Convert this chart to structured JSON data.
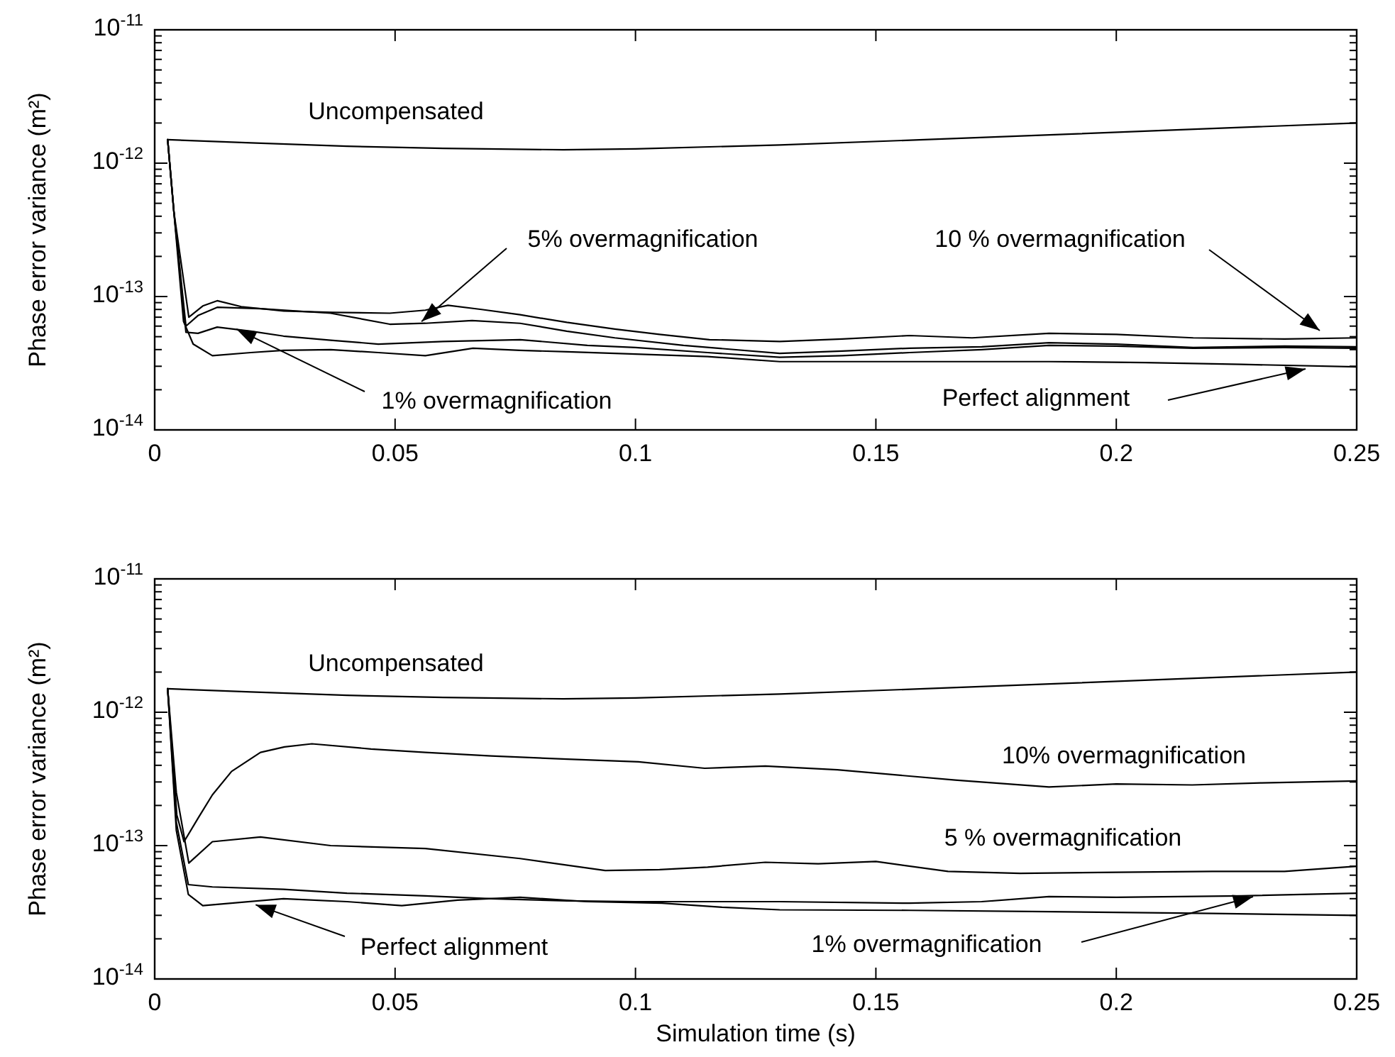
{
  "chart_data": [
    {
      "type": "line",
      "ylabel": "Phase error variance (m²)",
      "log": "y",
      "xlim": [
        0,
        0.25
      ],
      "ylim": [
        1e-14,
        1e-11
      ],
      "annotations": [
        "10 % overmagnification",
        {
          "text": "5% overmagnification",
          "x": 0.0555,
          "y": 6.5e-14
        },
        {
          "text": "1% overmagnification",
          "x": 0.017,
          "y": 5.7e-14
        },
        "Perfect alignment"
      ],
      "xticks": [
        0,
        0.05,
        0.1,
        0.15,
        0.2,
        0.25
      ],
      "yticks": [
        {
          "value": 1e-14,
          "label": "10$^{-14}$"
        },
        {
          "value": 1e-13,
          "label": "10$^{-13}$"
        },
        {
          "value": 1e-12,
          "label": "10$^{-12}$"
        },
        {
          "value": 1e-11,
          "label": "10$^{-11}$"
        },
        {
          "value": 2e-14,
          "label": null
        },
        {
          "value": 3e-14,
          "label": null
        },
        {
          "value": 4e-14,
          "label": null
        },
        {
          "value": 5e-14,
          "label": null
        },
        {
          "value": 6e-14,
          "label": null
        },
        {
          "value": 7e-14,
          "label": null
        },
        {
          "value": 8e-14,
          "label": null
        },
        {
          "value": 9e-14,
          "label": null
        },
        {
          "value": 2e-13,
          "label": null
        },
        {
          "value": 3e-13,
          "label": null
        },
        {
          "value": 4e-13,
          "label": null
        },
        {
          "value": 5e-13,
          "label": null
        },
        {
          "value": 6e-13,
          "label": null
        },
        {
          "value": 7e-13,
          "label": null
        },
        {
          "value": 8e-13,
          "label": null
        },
        {
          "value": 9e-13,
          "label": null
        },
        {
          "value": 2e-12,
          "label": null
        },
        {
          "value": 3e-12,
          "label": null
        },
        {
          "value": 4e-12,
          "label": null
        },
        {
          "value": 5e-12,
          "label": null
        },
        {
          "value": 6e-12,
          "label": null
        },
        {
          "value": 7e-12,
          "label": null
        },
        {
          "value": 8e-12,
          "label": null
        },
        {
          "value": 9e-12,
          "label": null
        }
      ],
      "series": [
        {
          "name": "Uncompensated",
          "color": "#000000",
          "x": [
            0.0027,
            0.02,
            0.04,
            0.06,
            0.085,
            0.1,
            0.13,
            0.16,
            0.19,
            0.22,
            0.25
          ],
          "values": [
            1.5e-12,
            1.42e-12,
            1.34e-12,
            1.29e-12,
            1.26e-12,
            1.28e-12,
            1.37e-12,
            1.5e-12,
            1.65e-12,
            1.82e-12,
            2e-12
          ]
        },
        {
          "color": "#000000",
          "x": [
            0.0027,
            0.004,
            0.0071,
            0.01,
            0.013,
            0.018,
            0.0268,
            0.037,
            0.0489,
            0.0563,
            0.061,
            0.068,
            0.076,
            0.0857,
            0.0957,
            0.105,
            0.1154,
            0.13,
            0.143,
            0.157,
            0.17,
            0.186,
            0.2,
            0.216,
            0.235,
            0.25
          ],
          "values": [
            1.5e-12,
            4.3e-13,
            7e-14,
            8.5e-14,
            9.3e-14,
            8.4e-14,
            7.8e-14,
            7.6e-14,
            7.5e-14,
            7.9e-14,
            8.6e-14,
            8e-14,
            7.3e-14,
            6.4e-14,
            5.7e-14,
            5.2e-14,
            4.75e-14,
            4.6e-14,
            4.8e-14,
            5.1e-14,
            4.9e-14,
            5.3e-14,
            5.2e-14,
            4.9e-14,
            4.8e-14,
            4.9e-14
          ]
        },
        {
          "color": "#000000",
          "x": [
            0.0027,
            0.004,
            0.0065,
            0.009,
            0.013,
            0.022,
            0.0366,
            0.0489,
            0.0563,
            0.066,
            0.076,
            0.0857,
            0.0957,
            0.11,
            0.13,
            0.143,
            0.157,
            0.172,
            0.186,
            0.2,
            0.216,
            0.235,
            0.25
          ],
          "values": [
            1.5e-12,
            4.3e-13,
            6e-14,
            7.2e-14,
            8.3e-14,
            8.1e-14,
            7.5e-14,
            6.2e-14,
            6.3e-14,
            6.6e-14,
            6.3e-14,
            5.5e-14,
            4.9e-14,
            4.3e-14,
            3.75e-14,
            3.9e-14,
            4.1e-14,
            4.2e-14,
            4.5e-14,
            4.4e-14,
            4.15e-14,
            4.25e-14,
            4.2e-14
          ]
        },
        {
          "color": "#000000",
          "x": [
            0.0027,
            0.004,
            0.0065,
            0.009,
            0.013,
            0.02,
            0.0268,
            0.0366,
            0.0465,
            0.06,
            0.076,
            0.09,
            0.1,
            0.115,
            0.13,
            0.143,
            0.157,
            0.172,
            0.186,
            0.2,
            0.216,
            0.235,
            0.25
          ],
          "values": [
            1.5e-12,
            4.3e-13,
            5.4e-14,
            5.3e-14,
            5.9e-14,
            5.5e-14,
            5.05e-14,
            4.7e-14,
            4.4e-14,
            4.6e-14,
            4.75e-14,
            4.3e-14,
            4.15e-14,
            3.8e-14,
            3.5e-14,
            3.6e-14,
            3.8e-14,
            4e-14,
            4.3e-14,
            4.25e-14,
            4.1e-14,
            4.15e-14,
            4.1e-14
          ]
        },
        {
          "color": "#000000",
          "x": [
            0.0027,
            0.004,
            0.006,
            0.008,
            0.012,
            0.02,
            0.0268,
            0.0366,
            0.0465,
            0.0563,
            0.0662,
            0.076,
            0.0858,
            0.1,
            0.115,
            0.13,
            0.157,
            0.186,
            0.206,
            0.226,
            0.25
          ],
          "values": [
            1.5e-12,
            4.3e-13,
            6.5e-14,
            4.4e-14,
            3.6e-14,
            3.8e-14,
            3.95e-14,
            4e-14,
            3.8e-14,
            3.6e-14,
            4.1e-14,
            3.95e-14,
            3.85e-14,
            3.7e-14,
            3.55e-14,
            3.25e-14,
            3.25e-14,
            3.25e-14,
            3.2e-14,
            3.1e-14,
            2.97e-14
          ]
        }
      ]
    },
    {
      "type": "line",
      "xlabel": "Simulation time (s)",
      "ylabel": "Phase error variance (m²)",
      "log": "y",
      "xlim": [
        0,
        0.25
      ],
      "ylim": [
        1e-14,
        1e-11
      ],
      "annotations": [
        "1% overmagnification",
        {
          "text": "Perfect alignment",
          "x": 0.021,
          "y": 3.6e-14
        }
      ],
      "xticks": [
        0,
        0.05,
        0.1,
        0.15,
        0.2,
        0.25
      ],
      "yticks": [
        {
          "value": 1e-14,
          "label": "10$^{-14}$"
        },
        {
          "value": 1e-13,
          "label": "10$^{-13}$"
        },
        {
          "value": 1e-12,
          "label": "10$^{-12}$"
        },
        {
          "value": 1e-11,
          "label": "10$^{-11}$"
        },
        {
          "value": 2e-14,
          "label": null
        },
        {
          "value": 3e-14,
          "label": null
        },
        {
          "value": 4e-14,
          "label": null
        },
        {
          "value": 5e-14,
          "label": null
        },
        {
          "value": 6e-14,
          "label": null
        },
        {
          "value": 7e-14,
          "label": null
        },
        {
          "value": 8e-14,
          "label": null
        },
        {
          "value": 9e-14,
          "label": null
        },
        {
          "value": 2e-13,
          "label": null
        },
        {
          "value": 3e-13,
          "label": null
        },
        {
          "value": 4e-13,
          "label": null
        },
        {
          "value": 5e-13,
          "label": null
        },
        {
          "value": 6e-13,
          "label": null
        },
        {
          "value": 7e-13,
          "label": null
        },
        {
          "value": 8e-13,
          "label": null
        },
        {
          "value": 9e-13,
          "label": null
        },
        {
          "value": 2e-12,
          "label": null
        },
        {
          "value": 3e-12,
          "label": null
        },
        {
          "value": 4e-12,
          "label": null
        },
        {
          "value": 5e-12,
          "label": null
        },
        {
          "value": 6e-12,
          "label": null
        },
        {
          "value": 7e-12,
          "label": null
        },
        {
          "value": 8e-12,
          "label": null
        },
        {
          "value": 9e-12,
          "label": null
        }
      ],
      "series": [
        {
          "name": "Uncompensated",
          "color": "#000000",
          "x": [
            0.0027,
            0.02,
            0.04,
            0.06,
            0.085,
            0.1,
            0.13,
            0.16,
            0.19,
            0.22,
            0.25
          ],
          "values": [
            1.5e-12,
            1.42e-12,
            1.34e-12,
            1.29e-12,
            1.26e-12,
            1.28e-12,
            1.37e-12,
            1.5e-12,
            1.65e-12,
            1.82e-12,
            2e-12
          ]
        },
        {
          "name": "10% overmagnification",
          "color": "#000000",
          "x": [
            0.0027,
            0.0046,
            0.0061,
            0.009,
            0.012,
            0.016,
            0.022,
            0.027,
            0.0327,
            0.045,
            0.0563,
            0.07,
            0.0858,
            0.1006,
            0.1144,
            0.127,
            0.142,
            0.1665,
            0.186,
            0.2,
            0.2158,
            0.23,
            0.25
          ],
          "values": [
            1.5e-12,
            1.7e-13,
            1.07e-13,
            1.6e-13,
            2.4e-13,
            3.6e-13,
            5e-13,
            5.5e-13,
            5.8e-13,
            5.3e-13,
            5e-13,
            4.7e-13,
            4.45e-13,
            4.25e-13,
            3.8e-13,
            3.95e-13,
            3.7e-13,
            3.1e-13,
            2.75e-13,
            2.9e-13,
            2.85e-13,
            2.95e-13,
            3.05e-13
          ]
        },
        {
          "name": "5 % overmagnification",
          "color": "#000000",
          "x": [
            0.0027,
            0.0045,
            0.0071,
            0.012,
            0.022,
            0.0366,
            0.0563,
            0.076,
            0.0937,
            0.105,
            0.115,
            0.127,
            0.138,
            0.15,
            0.165,
            0.18,
            0.2,
            0.22,
            0.235,
            0.25
          ],
          "values": [
            1.5e-12,
            2.5e-13,
            7.4e-14,
            1.07e-13,
            1.16e-13,
            1e-13,
            9.5e-14,
            8e-14,
            6.5e-14,
            6.6e-14,
            6.9e-14,
            7.5e-14,
            7.3e-14,
            7.6e-14,
            6.4e-14,
            6.2e-14,
            6.3e-14,
            6.4e-14,
            6.4e-14,
            7e-14
          ]
        },
        {
          "color": "#000000",
          "x": [
            0.0027,
            0.0045,
            0.007,
            0.012,
            0.0268,
            0.04,
            0.0563,
            0.07,
            0.0858,
            0.1,
            0.13,
            0.157,
            0.172,
            0.186,
            0.2,
            0.226,
            0.25
          ],
          "values": [
            1.5e-12,
            1.5e-13,
            5.1e-14,
            4.9e-14,
            4.7e-14,
            4.4e-14,
            4.2e-14,
            4e-14,
            3.85e-14,
            3.8e-14,
            3.8e-14,
            3.7e-14,
            3.8e-14,
            4.15e-14,
            4.1e-14,
            4.2e-14,
            4.4e-14
          ]
        },
        {
          "color": "#000000",
          "x": [
            0.0027,
            0.0045,
            0.007,
            0.01,
            0.0268,
            0.04,
            0.0514,
            0.063,
            0.076,
            0.09,
            0.1055,
            0.118,
            0.13,
            0.157,
            0.186,
            0.22,
            0.25
          ],
          "values": [
            1.5e-12,
            1.3e-13,
            4.3e-14,
            3.55e-14,
            4e-14,
            3.8e-14,
            3.55e-14,
            3.9e-14,
            4.1e-14,
            3.8e-14,
            3.7e-14,
            3.45e-14,
            3.3e-14,
            3.27e-14,
            3.2e-14,
            3.1e-14,
            3e-14
          ]
        }
      ]
    }
  ]
}
